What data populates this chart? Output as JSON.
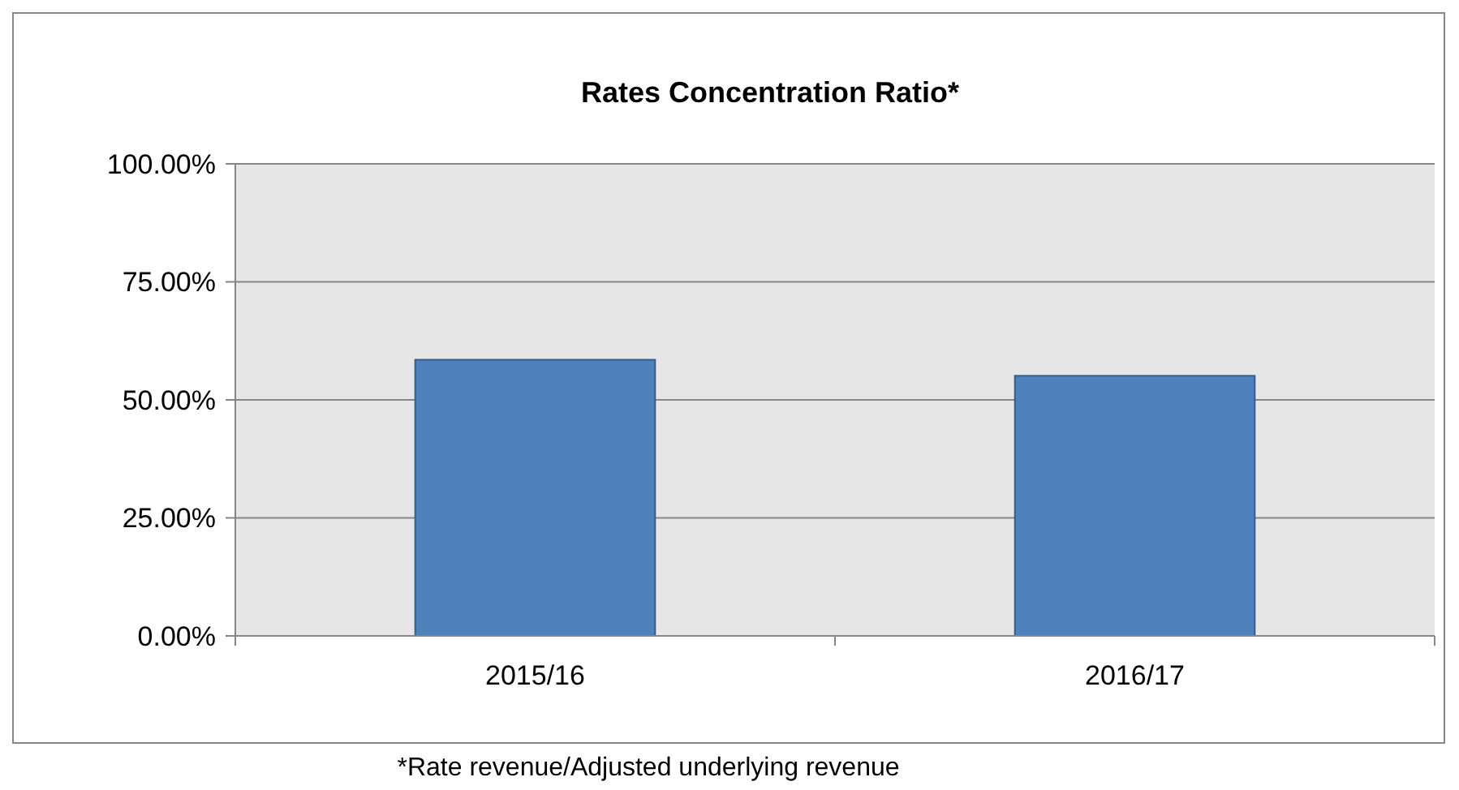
{
  "chart_data": {
    "type": "bar",
    "title": "Rates Concentration Ratio*",
    "categories": [
      "2015/16",
      "2016/17"
    ],
    "values": [
      58.5,
      55.1
    ],
    "color": "#4f81bd",
    "ylim": [
      0,
      100
    ],
    "yticks": [
      {
        "value": 0,
        "label": "0.00%"
      },
      {
        "value": 25,
        "label": "25.00%"
      },
      {
        "value": 50,
        "label": "50.00%"
      },
      {
        "value": 75,
        "label": "75.00%"
      },
      {
        "value": 100,
        "label": "100.00%"
      }
    ],
    "grid": "y",
    "annotations": [
      "*Rate revenue/Adjusted underlying revenue"
    ]
  }
}
